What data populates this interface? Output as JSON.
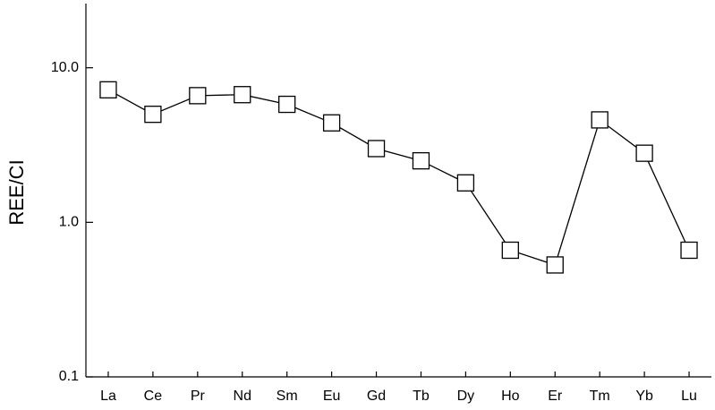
{
  "chart_data": {
    "type": "line",
    "ylabel": "REE/CI",
    "categories": [
      "La",
      "Ce",
      "Pr",
      "Nd",
      "Sm",
      "Eu",
      "Gd",
      "Tb",
      "Dy",
      "Ho",
      "Er",
      "Tm",
      "Yb",
      "Lu"
    ],
    "values": [
      7.2,
      5.0,
      6.6,
      6.7,
      5.8,
      4.4,
      3.0,
      2.5,
      1.8,
      0.66,
      0.53,
      4.6,
      2.8,
      0.66
    ],
    "color": "#000000",
    "marker": "square",
    "ylog": true,
    "ylim": [
      0.1,
      25
    ],
    "yticks": [
      0.1,
      {
        "value": 1,
        "label": "1.0"
      },
      {
        "value": 10,
        "label": "10.0"
      }
    ]
  }
}
